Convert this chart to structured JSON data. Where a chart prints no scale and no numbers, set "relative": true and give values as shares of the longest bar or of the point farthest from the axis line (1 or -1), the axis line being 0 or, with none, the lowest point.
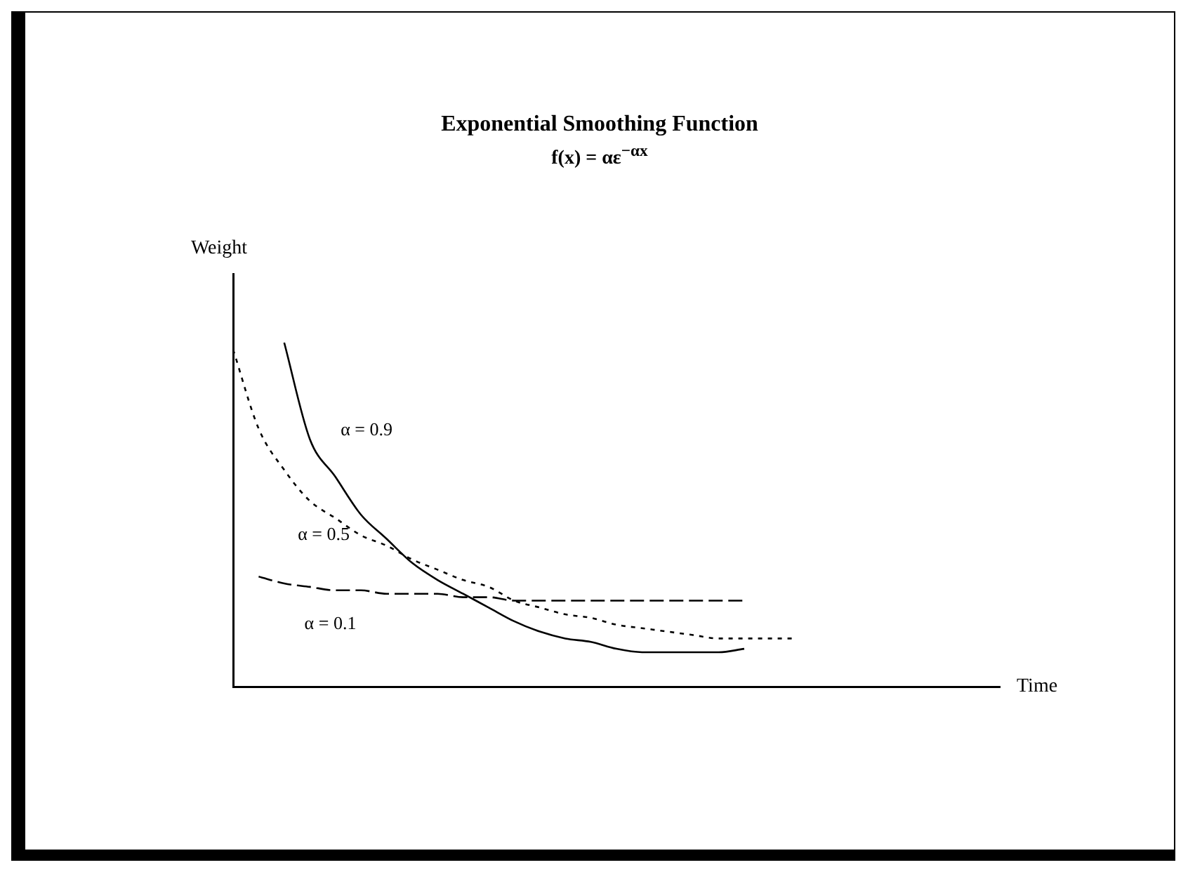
{
  "chart_data": {
    "type": "line",
    "title": "Exponential Smoothing Function",
    "subtitle": "f(x) = αε$^{−αx}$",
    "xlabel": "Time",
    "ylabel": "Weight",
    "relative": true,
    "grid": false,
    "legend": false,
    "marker": "none",
    "categories": [
      null,
      null,
      null,
      null,
      null,
      null,
      null,
      null,
      null,
      null,
      null,
      null,
      null,
      null,
      null,
      null,
      null,
      null,
      null,
      null,
      null,
      null,
      null,
      null,
      null,
      null,
      null,
      null,
      null,
      null,
      null
    ],
    "series": [
      {
        "name": "α = 0.9",
        "color": "#000000",
        "line_style": "solid",
        "values": [
          null,
          null,
          1.0,
          0.72,
          0.61,
          0.5,
          0.43,
          0.36,
          0.31,
          0.27,
          0.23,
          0.19,
          0.16,
          0.14,
          0.13,
          0.11,
          0.1,
          0.1,
          0.1,
          0.1,
          0.11,
          null,
          null,
          null,
          null,
          null,
          null,
          null,
          null,
          null,
          null
        ]
      },
      {
        "name": "α = 0.5",
        "color": "#000000",
        "line_style": "dotted",
        "values": [
          0.98,
          0.75,
          0.63,
          0.54,
          0.49,
          0.44,
          0.41,
          0.37,
          0.34,
          0.31,
          0.29,
          0.25,
          0.23,
          0.21,
          0.2,
          0.18,
          0.17,
          0.16,
          0.15,
          0.14,
          0.14,
          0.14,
          0.14,
          null,
          null,
          null,
          null,
          null,
          null,
          null,
          null
        ]
      },
      {
        "name": "α = 0.1",
        "color": "#000000",
        "line_style": "dashed",
        "values": [
          null,
          0.32,
          0.3,
          0.29,
          0.28,
          0.28,
          0.27,
          0.27,
          0.27,
          0.26,
          0.26,
          0.25,
          0.25,
          0.25,
          0.25,
          0.25,
          0.25,
          0.25,
          0.25,
          0.25,
          0.25,
          null,
          null,
          null,
          null,
          null,
          null,
          null,
          null,
          null,
          null
        ]
      }
    ]
  }
}
